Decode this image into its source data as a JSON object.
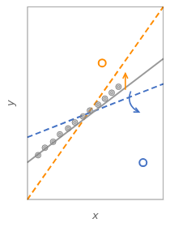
{
  "chart_data": {
    "type": "scatter",
    "xlabel": "x",
    "ylabel": "y",
    "xlim": [
      0,
      10
    ],
    "ylim": [
      -1,
      12
    ],
    "tick_labels": false,
    "grid": false,
    "series": [
      {
        "type": "line",
        "line_style": "dashed",
        "color": "#FF8C00",
        "x": [
          0.0,
          10.0
        ],
        "values": [
          -1.0,
          12.0
        ]
      },
      {
        "type": "line",
        "line_style": "dashed",
        "color": "#4472C4",
        "x": [
          0.0,
          10.0
        ],
        "values": [
          3.2,
          6.8
        ]
      },
      {
        "type": "line",
        "line_style": "solid",
        "color": "#999999",
        "x": [
          0.0,
          10.0
        ],
        "values": [
          1.5,
          8.5
        ]
      },
      {
        "type": "scatter",
        "marker": "bullseye",
        "color": "#888888",
        "x": [
          0.8,
          1.3,
          1.9,
          2.4,
          3.0,
          3.5,
          4.1,
          4.6,
          5.2,
          5.7,
          6.2,
          6.7
        ],
        "values": [
          2.0,
          2.5,
          2.9,
          3.4,
          3.8,
          4.2,
          4.6,
          5.0,
          5.4,
          5.8,
          6.2,
          6.6
        ]
      },
      {
        "type": "scatter",
        "marker": "open_circle",
        "color": "#FF8C00",
        "x": [
          5.5
        ],
        "values": [
          8.2
        ]
      },
      {
        "type": "scatter",
        "marker": "open_circle",
        "color": "#4472C4",
        "x": [
          8.5
        ],
        "values": [
          1.5
        ]
      }
    ],
    "annotations": [
      {
        "type": "arrow",
        "x": 7.6,
        "y": 6.3,
        "x_end": 8.2,
        "y_end": 4.9,
        "color": "#4472C4",
        "line_style": "curved"
      },
      {
        "type": "arrow",
        "x": 7.2,
        "y": 6.4,
        "x_end": 7.2,
        "y_end": 7.5,
        "color": "#FF8C00",
        "line_style": "straight"
      }
    ]
  }
}
